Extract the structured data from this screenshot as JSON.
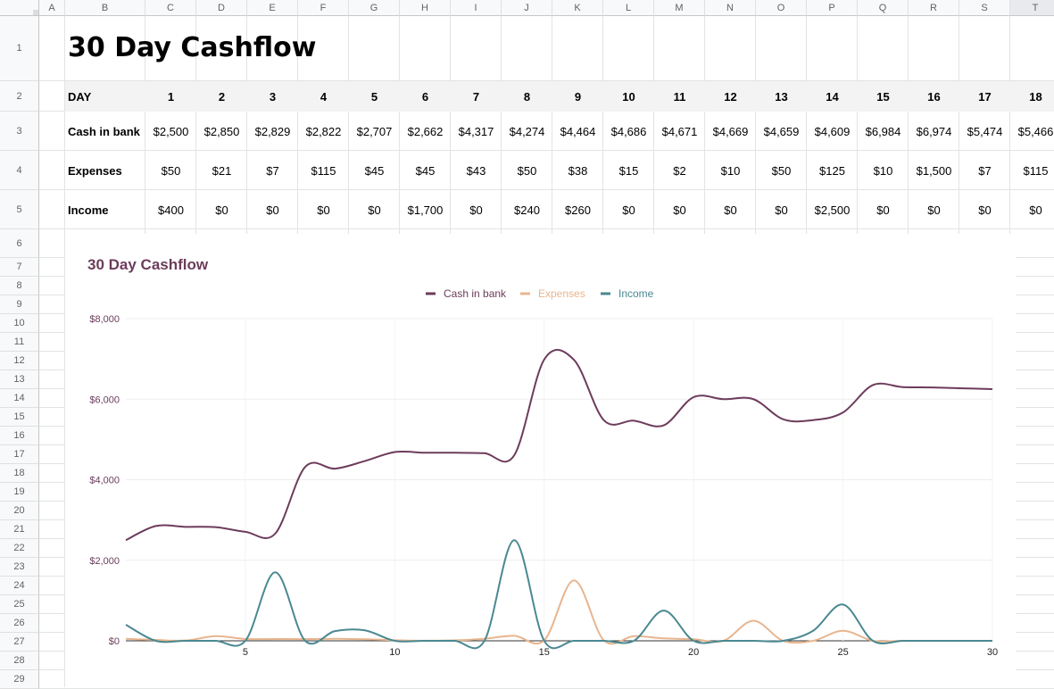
{
  "sheet": {
    "columns": [
      "A",
      "B",
      "C",
      "D",
      "E",
      "F",
      "G",
      "H",
      "I",
      "J",
      "K",
      "L",
      "M",
      "N",
      "O",
      "P",
      "Q",
      "R",
      "S",
      "T"
    ],
    "rows": [
      "1",
      "2",
      "3",
      "4",
      "5",
      "6",
      "7",
      "8",
      "9",
      "10",
      "11",
      "12",
      "13",
      "14",
      "15",
      "16",
      "17",
      "18",
      "19",
      "20",
      "21",
      "22",
      "23",
      "24",
      "25",
      "26",
      "27",
      "28",
      "29"
    ],
    "title": "30 Day Cashflow",
    "day_label": "DAY",
    "days": [
      "1",
      "2",
      "3",
      "4",
      "5",
      "6",
      "7",
      "8",
      "9",
      "10",
      "11",
      "12",
      "13",
      "14",
      "15",
      "16",
      "17",
      "18"
    ],
    "table": [
      {
        "label": "Cash in bank",
        "values": [
          "$2,500",
          "$2,850",
          "$2,829",
          "$2,822",
          "$2,707",
          "$2,662",
          "$4,317",
          "$4,274",
          "$4,464",
          "$4,686",
          "$4,671",
          "$4,669",
          "$4,659",
          "$4,609",
          "$6,984",
          "$6,974",
          "$5,474",
          "$5,466"
        ]
      },
      {
        "label": "Expenses",
        "values": [
          "$50",
          "$21",
          "$7",
          "$115",
          "$45",
          "$45",
          "$43",
          "$50",
          "$38",
          "$15",
          "$2",
          "$10",
          "$50",
          "$125",
          "$10",
          "$1,500",
          "$7",
          "$115"
        ]
      },
      {
        "label": "Income",
        "values": [
          "$400",
          "$0",
          "$0",
          "$0",
          "$0",
          "$1,700",
          "$0",
          "$240",
          "$260",
          "$0",
          "$0",
          "$0",
          "$0",
          "$2,500",
          "$0",
          "$0",
          "$0",
          "$0"
        ]
      }
    ]
  },
  "chart_data": {
    "type": "line",
    "title": "30 Day Cashflow",
    "legend_position": "top",
    "xlabel": "",
    "ylabel": "",
    "xlim": [
      1,
      30
    ],
    "ylim": [
      0,
      8000
    ],
    "x_ticks": [
      "5",
      "10",
      "15",
      "20",
      "25",
      "30"
    ],
    "y_ticks": [
      "$0",
      "$2,000",
      "$4,000",
      "$6,000",
      "$8,000"
    ],
    "grid": true,
    "x": [
      1,
      2,
      3,
      4,
      5,
      6,
      7,
      8,
      9,
      10,
      11,
      12,
      13,
      14,
      15,
      16,
      17,
      18,
      19,
      20,
      21,
      22,
      23,
      24,
      25,
      26,
      27,
      28,
      29,
      30
    ],
    "series": [
      {
        "name": "Cash in bank",
        "color": "#6d3c5b",
        "values": [
          2500,
          2850,
          2829,
          2822,
          2707,
          2662,
          4317,
          4274,
          4464,
          4686,
          4671,
          4669,
          4659,
          4609,
          6984,
          6974,
          5474,
          5466,
          5350,
          6050,
          6000,
          6000,
          5500,
          5480,
          5670,
          6350,
          6300,
          6290,
          6270,
          6250
        ]
      },
      {
        "name": "Expenses",
        "color": "#e8b58e",
        "values": [
          50,
          21,
          7,
          115,
          45,
          45,
          43,
          50,
          38,
          15,
          2,
          10,
          50,
          125,
          10,
          1500,
          7,
          115,
          60,
          40,
          0,
          500,
          0,
          0,
          250,
          0,
          0,
          0,
          0,
          0
        ]
      },
      {
        "name": "Income",
        "color": "#4a8891",
        "values": [
          400,
          0,
          0,
          0,
          0,
          1700,
          0,
          240,
          260,
          0,
          0,
          0,
          0,
          2500,
          0,
          0,
          0,
          0,
          750,
          0,
          0,
          0,
          0,
          250,
          900,
          0,
          0,
          0,
          0,
          0
        ]
      }
    ]
  }
}
